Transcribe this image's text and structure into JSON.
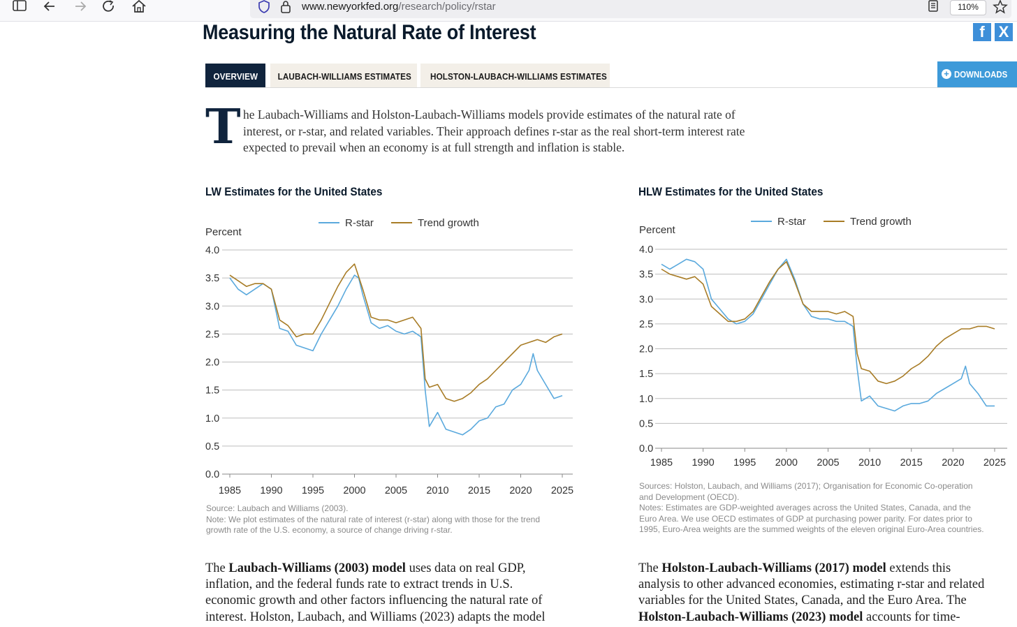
{
  "browser": {
    "url_domain": "www.newyorkfed.org",
    "url_path": "/research/policy/rstar",
    "zoom": "110%",
    "icons": [
      "sidebar-icon",
      "back-arrow-icon",
      "forward-arrow-icon",
      "reload-icon",
      "home-icon",
      "shield-icon",
      "lock-icon",
      "reader-view-icon",
      "bookmark-star-icon"
    ]
  },
  "page": {
    "title": "Measuring the Natural Rate of Interest",
    "social": [
      "facebook-icon",
      "x-icon"
    ],
    "tabs": [
      {
        "label": "OVERVIEW",
        "active": true
      },
      {
        "label": "LAUBACH-WILLIAMS ESTIMATES",
        "active": false
      },
      {
        "label": "HOLSTON-LAUBACH-WILLIAMS ESTIMATES",
        "active": false
      }
    ],
    "downloads_label": "DOWNLOADS",
    "intro_dropcap": "T",
    "intro_lines": [
      "he Laubach-Williams and Holston-Laubach-Williams models provide estimates of the natural rate of",
      "interest, or r-star, and related variables. Their approach defines r-star as the real short-term interest rate",
      "expected to prevail when an economy is at full strength and inflation is stable."
    ],
    "colors": {
      "navy": "#10243d",
      "rstar": "#5aa9dd",
      "trend": "#a87c26",
      "downloads": "#3d9ad9"
    }
  },
  "charts": {
    "lw": {
      "title": "LW Estimates for the United States",
      "notes": [
        "Source: Laubach and Williams (2003).",
        "Note: We plot estimates of the natural rate of interest (r-star) along with those for the trend",
        "growth rate of the U.S. economy, a source of change driving r-star."
      ]
    },
    "hlw": {
      "title": "HLW Estimates for the United States",
      "notes": [
        "Sources: Holston, Laubach, and Williams (2017); Organisation for Economic Co-operation",
        "and Development (OECD).",
        "Notes: Estimates are GDP-weighted averages across the United States, Canada, and the",
        "Euro Area. We use OECD estimates of GDP at purchasing power parity. For dates prior to",
        "1995, Euro-Area weights are the summed weights of the eleven original Euro-Area countries."
      ]
    }
  },
  "chart_data": [
    {
      "type": "line",
      "title": "LW Estimates for the United States",
      "ylabel": "Percent",
      "ylim": [
        0,
        4
      ],
      "yticks": [
        "0.0",
        "0.5",
        "1.0",
        "1.5",
        "2.0",
        "2.5",
        "3.0",
        "3.5",
        "4.0"
      ],
      "xlim": [
        1985,
        2025
      ],
      "xticks": [
        "1985",
        "1990",
        "1995",
        "2000",
        "2005",
        "2010",
        "2015",
        "2020",
        "2025"
      ],
      "grid": true,
      "legend": "top-center",
      "series": [
        {
          "name": "R-star",
          "color": "#5aa9dd",
          "x": [
            1985,
            1986,
            1987,
            1988,
            1989,
            1990,
            1991,
            1992,
            1993,
            1994,
            1995,
            1996,
            1997,
            1998,
            1999,
            2000,
            2000.5,
            2001,
            2002,
            2003,
            2004,
            2005,
            2006,
            2007,
            2008,
            2008.5,
            2009,
            2010,
            2011,
            2012,
            2013,
            2014,
            2015,
            2016,
            2017,
            2018,
            2019,
            2020,
            2021,
            2021.5,
            2022,
            2023,
            2024,
            2025
          ],
          "values": [
            3.5,
            3.3,
            3.2,
            3.3,
            3.4,
            3.3,
            2.6,
            2.55,
            2.3,
            2.25,
            2.2,
            2.5,
            2.75,
            3.0,
            3.3,
            3.55,
            3.5,
            3.2,
            2.7,
            2.6,
            2.65,
            2.55,
            2.5,
            2.55,
            2.45,
            1.5,
            0.85,
            1.1,
            0.8,
            0.75,
            0.7,
            0.8,
            0.95,
            1.0,
            1.2,
            1.25,
            1.5,
            1.6,
            1.85,
            2.15,
            1.85,
            1.6,
            1.35,
            1.4
          ]
        },
        {
          "name": "Trend growth",
          "color": "#a87c26",
          "x": [
            1985,
            1986,
            1987,
            1988,
            1989,
            1990,
            1991,
            1992,
            1993,
            1994,
            1995,
            1996,
            1997,
            1998,
            1999,
            2000,
            2001,
            2002,
            2003,
            2004,
            2005,
            2006,
            2007,
            2008,
            2008.5,
            2009,
            2010,
            2011,
            2012,
            2013,
            2014,
            2015,
            2016,
            2017,
            2018,
            2019,
            2020,
            2021,
            2022,
            2023,
            2024,
            2025
          ],
          "values": [
            3.55,
            3.45,
            3.35,
            3.4,
            3.4,
            3.3,
            2.75,
            2.65,
            2.45,
            2.5,
            2.5,
            2.75,
            3.05,
            3.35,
            3.6,
            3.75,
            3.3,
            2.8,
            2.75,
            2.75,
            2.7,
            2.75,
            2.8,
            2.6,
            1.7,
            1.55,
            1.6,
            1.35,
            1.3,
            1.35,
            1.45,
            1.6,
            1.7,
            1.85,
            2.0,
            2.15,
            2.3,
            2.35,
            2.4,
            2.35,
            2.45,
            2.5
          ]
        }
      ]
    },
    {
      "type": "line",
      "title": "HLW Estimates for the United States",
      "ylabel": "Percent",
      "ylim": [
        0,
        4
      ],
      "yticks": [
        "0.0",
        "0.5",
        "1.0",
        "1.5",
        "2.0",
        "2.5",
        "3.0",
        "3.5",
        "4.0"
      ],
      "xlim": [
        1985,
        2025
      ],
      "xticks": [
        "1985",
        "1990",
        "1995",
        "2000",
        "2005",
        "2010",
        "2015",
        "2020",
        "2025"
      ],
      "grid": true,
      "legend": "top-center",
      "series": [
        {
          "name": "R-star",
          "color": "#5aa9dd",
          "x": [
            1985,
            1986,
            1987,
            1988,
            1989,
            1990,
            1991,
            1992,
            1993,
            1994,
            1995,
            1996,
            1997,
            1998,
            1999,
            2000,
            2001,
            2002,
            2003,
            2004,
            2005,
            2006,
            2007,
            2008,
            2008.5,
            2009,
            2010,
            2011,
            2012,
            2013,
            2014,
            2015,
            2016,
            2017,
            2018,
            2019,
            2020,
            2021,
            2021.5,
            2022,
            2023,
            2024,
            2025
          ],
          "values": [
            3.7,
            3.6,
            3.7,
            3.8,
            3.75,
            3.6,
            3.0,
            2.8,
            2.6,
            2.5,
            2.55,
            2.7,
            3.0,
            3.3,
            3.6,
            3.8,
            3.4,
            2.9,
            2.65,
            2.6,
            2.6,
            2.55,
            2.55,
            2.45,
            1.6,
            0.95,
            1.05,
            0.85,
            0.8,
            0.75,
            0.85,
            0.9,
            0.9,
            0.95,
            1.1,
            1.2,
            1.3,
            1.4,
            1.65,
            1.3,
            1.1,
            0.85,
            0.85
          ]
        },
        {
          "name": "Trend growth",
          "color": "#a87c26",
          "x": [
            1985,
            1986,
            1987,
            1988,
            1989,
            1990,
            1991,
            1992,
            1993,
            1994,
            1995,
            1996,
            1997,
            1998,
            1999,
            2000,
            2001,
            2002,
            2003,
            2004,
            2005,
            2006,
            2007,
            2008,
            2008.5,
            2009,
            2010,
            2011,
            2012,
            2013,
            2014,
            2015,
            2016,
            2017,
            2018,
            2019,
            2020,
            2021,
            2022,
            2023,
            2024,
            2025
          ],
          "values": [
            3.6,
            3.5,
            3.45,
            3.4,
            3.45,
            3.3,
            2.85,
            2.7,
            2.55,
            2.55,
            2.6,
            2.75,
            3.05,
            3.35,
            3.6,
            3.75,
            3.35,
            2.9,
            2.75,
            2.75,
            2.75,
            2.7,
            2.75,
            2.65,
            1.9,
            1.6,
            1.55,
            1.35,
            1.3,
            1.35,
            1.45,
            1.6,
            1.7,
            1.85,
            2.05,
            2.2,
            2.3,
            2.4,
            2.4,
            2.45,
            2.45,
            2.4
          ]
        }
      ]
    }
  ],
  "body": {
    "left_parts": [
      [
        {
          "t": "The "
        },
        {
          "t": "Laubach-Williams (2003) model",
          "b": true
        },
        {
          "t": " uses data on real GDP,"
        }
      ],
      [
        {
          "t": "inflation, and the federal funds rate to extract trends in U.S."
        }
      ],
      [
        {
          "t": "economic growth and other factors influencing the natural rate of"
        }
      ],
      [
        {
          "t": "interest. Holston, Laubach, and Williams (2023) adapts the model"
        }
      ]
    ],
    "right_parts": [
      [
        {
          "t": "The "
        },
        {
          "t": "Holston-Laubach-Williams (2017) model",
          "b": true
        },
        {
          "t": " extends this"
        }
      ],
      [
        {
          "t": "analysis to other advanced economies, estimating r-star and related"
        }
      ],
      [
        {
          "t": "variables for the United States, Canada, and the Euro Area. The"
        }
      ],
      [
        {
          "t": "Holston-Laubach-Williams (2023) model",
          "b": true
        },
        {
          "t": " accounts for time-"
        }
      ]
    ]
  }
}
